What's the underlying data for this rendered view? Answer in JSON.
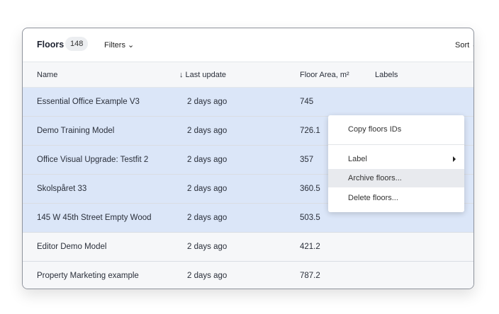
{
  "header": {
    "title": "Floors",
    "count": "148",
    "filters_label": "Filters ⌄",
    "sort_label": "Sort ⌄"
  },
  "columns": {
    "name": "Name",
    "last_update": "↓ Last update",
    "area": "Floor Area, m²",
    "labels": "Labels"
  },
  "rows": [
    {
      "name": "Essential Office Example V3",
      "updated": "2 days ago",
      "area": "745",
      "selected": true
    },
    {
      "name": "Demo Training Model",
      "updated": "2 days ago",
      "area": "726.1",
      "selected": true
    },
    {
      "name": "Office Visual Upgrade: Testfit 2",
      "updated": "2 days ago",
      "area": "357",
      "selected": true
    },
    {
      "name": "Skolspåret 33",
      "updated": "2 days ago",
      "area": "360.5",
      "selected": true
    },
    {
      "name": "145 W 45th Street Empty Wood",
      "updated": "2 days ago",
      "area": "503.5",
      "selected": true
    },
    {
      "name": "Editor Demo Model",
      "updated": "2 days ago",
      "area": "421.2",
      "selected": false
    },
    {
      "name": "Property Marketing example",
      "updated": "2 days ago",
      "area": "787.2",
      "selected": false
    }
  ],
  "menu": {
    "copy_ids": "Copy floors IDs",
    "label": "Label",
    "archive": "Archive floors...",
    "delete": "Delete floors..."
  },
  "colors": {
    "selected_row": "#dbe6f8",
    "header_bg": "#f6f7f9"
  }
}
